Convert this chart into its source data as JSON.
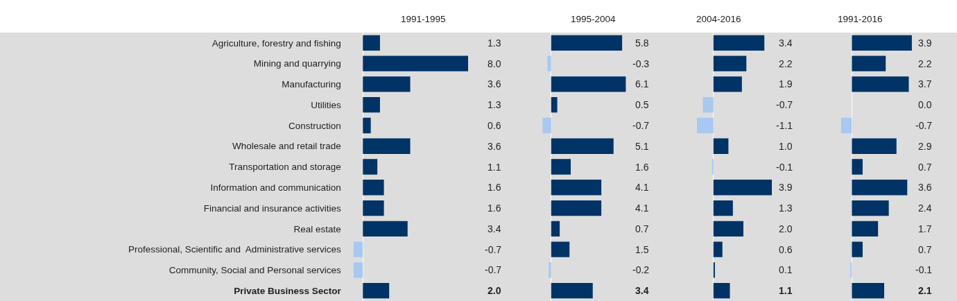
{
  "chart_data": [
    {
      "type": "bar",
      "orientation": "horizontal",
      "title": "1991-1995",
      "tick_labels": "y",
      "categories": [
        "Agriculture, forestry and fishing",
        "Mining and quarrying",
        "Manufacturing",
        "Utilities",
        "Construction",
        "Wholesale and retail trade",
        "Transportation and storage",
        "Information and communication",
        "Financial and insurance activities",
        "Real estate",
        "Professional, Scientific and  Administrative services",
        "Community, Social and Personal services",
        "Private Business Sector"
      ],
      "values": [
        1.3,
        8.0,
        3.6,
        1.3,
        0.6,
        3.6,
        1.1,
        1.6,
        1.6,
        3.4,
        -0.7,
        -0.7,
        2.0
      ],
      "value_labels": [
        "1.3",
        "8.0",
        "3.6",
        "1.3",
        "0.6",
        "3.6",
        "1.1",
        "1.6",
        "1.6",
        "3.4",
        "-0.7",
        "-0.7",
        "2.0"
      ],
      "colors": [
        "#003366",
        "#003366",
        "#003366",
        "#003366",
        "#003366",
        "#003366",
        "#003366",
        "#003366",
        "#003366",
        "#003366",
        "#a8c8f0",
        "#a8c8f0",
        "#003366"
      ]
    },
    {
      "type": "bar",
      "orientation": "horizontal",
      "title": "1995-2004",
      "tick_labels": false,
      "categories": [
        null,
        null,
        null,
        null,
        null,
        null,
        null,
        null,
        null,
        null,
        null,
        null,
        null
      ],
      "values": [
        5.8,
        -0.3,
        6.1,
        0.5,
        -0.7,
        5.1,
        1.6,
        4.1,
        4.1,
        0.7,
        1.5,
        -0.2,
        3.4
      ],
      "value_labels": [
        "5.8",
        "-0.3",
        "6.1",
        "0.5",
        "-0.7",
        "5.1",
        "1.6",
        "4.1",
        "4.1",
        "0.7",
        "1.5",
        "-0.2",
        "3.4"
      ],
      "colors": [
        "#003366",
        "#a8c8f0",
        "#003366",
        "#003366",
        "#a8c8f0",
        "#003366",
        "#003366",
        "#003366",
        "#003366",
        "#003366",
        "#003366",
        "#a8c8f0",
        "#003366"
      ]
    },
    {
      "type": "bar",
      "orientation": "horizontal",
      "title": "2004-2016",
      "tick_labels": false,
      "categories": [
        null,
        null,
        null,
        null,
        null,
        null,
        null,
        null,
        null,
        null,
        null,
        null,
        null
      ],
      "values": [
        3.4,
        2.2,
        1.9,
        -0.7,
        -1.1,
        1.0,
        -0.1,
        3.9,
        1.3,
        2.0,
        0.6,
        0.1,
        1.1
      ],
      "value_labels": [
        "3.4",
        "2.2",
        "1.9",
        "-0.7",
        "-1.1",
        "1.0",
        "-0.1",
        "3.9",
        "1.3",
        "2.0",
        "0.6",
        "0.1",
        "1.1"
      ],
      "colors": [
        "#003366",
        "#003366",
        "#003366",
        "#a8c8f0",
        "#a8c8f0",
        "#003366",
        "#a8c8f0",
        "#003366",
        "#003366",
        "#003366",
        "#003366",
        "#003366",
        "#003366"
      ]
    },
    {
      "type": "bar",
      "orientation": "horizontal",
      "title": "1991-2016",
      "tick_labels": false,
      "categories": [
        null,
        null,
        null,
        null,
        null,
        null,
        null,
        null,
        null,
        null,
        null,
        null,
        null
      ],
      "values": [
        3.9,
        2.2,
        3.7,
        0.0,
        -0.7,
        2.9,
        0.7,
        3.6,
        2.4,
        1.7,
        0.7,
        -0.1,
        2.1
      ],
      "value_labels": [
        "3.9",
        "2.2",
        "3.7",
        "0.0",
        "-0.7",
        "2.9",
        "0.7",
        "3.6",
        "2.4",
        "1.7",
        "0.7",
        "-0.1",
        "2.1"
      ],
      "colors": [
        "#003366",
        "#003366",
        "#003366",
        "#003366",
        "#a8c8f0",
        "#003366",
        "#003366",
        "#003366",
        "#003366",
        "#003366",
        "#003366",
        "#a8c8f0",
        "#003366"
      ]
    }
  ]
}
